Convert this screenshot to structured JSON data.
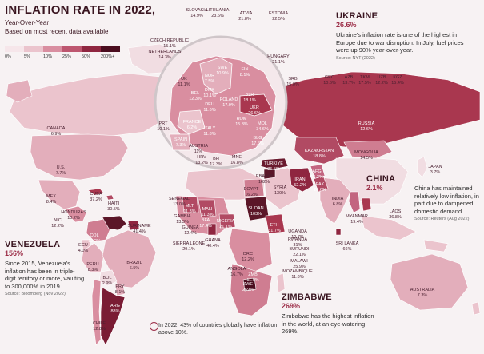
{
  "title": "INFLATION RATE IN 2022,",
  "subtitle_line1": "Year-Over-Year",
  "subtitle_line2": "Based on most recent data available",
  "legend": [
    {
      "label": "0%",
      "color": "#f6e6ea"
    },
    {
      "label": "5%",
      "color": "#ebc4cd"
    },
    {
      "label": "10%",
      "color": "#d98ea0"
    },
    {
      "label": "25%",
      "color": "#bd566f"
    },
    {
      "label": "50%",
      "color": "#8f2640"
    },
    {
      "label": "200%+",
      "color": "#4b0d1f"
    }
  ],
  "callouts": {
    "ukraine": {
      "heading": "UKRAINE",
      "value": "26.6%",
      "text": "Ukraine's inflation rate is one of the highest in Europe due to war disruption. In July, fuel prices were up 90% year-over-year.",
      "source": "Source: NYT (2022)"
    },
    "china": {
      "heading": "CHINA",
      "value": "2.1%",
      "text": "China has maintained relatively low inflation, in part due to dampened domestic demand.",
      "source": "Source: Reuters (Aug 2022)"
    },
    "venezuela": {
      "heading": "VENEZUELA",
      "value": "156%",
      "text": "Since 2015, Venezuela's inflation has been in triple-digit territory or more, vaulting to 300,000% in 2019.",
      "source": "Source: Bloomberg (Nov 2022)"
    },
    "zimbabwe": {
      "heading": "ZIMBABWE",
      "value": "269%",
      "text": "Zimbabwe has the highest inflation in the world, at an eye-watering 269%."
    }
  },
  "footnote": "In 2022, 43% of countries globally have inflation above 10%.",
  "footnote_icon": "i",
  "colors": {
    "title": "#3a1520",
    "accent": "#9c2d47",
    "land_default": "#ebc4cd",
    "ocean": "#f7f2f3"
  },
  "countries": [
    {
      "name": "CANADA",
      "value": "6.9%"
    },
    {
      "name": "U.S.",
      "value": "7.7%"
    },
    {
      "name": "MEX",
      "value": "8.4%"
    },
    {
      "name": "CUBA",
      "value": "37.2%"
    },
    {
      "name": "HAITI",
      "value": "30.5%"
    },
    {
      "name": "HONDURAS",
      "value": "10.2%"
    },
    {
      "name": "NIC",
      "value": "12.2%"
    },
    {
      "name": "COL",
      "value": "12.2%"
    },
    {
      "name": "ECU",
      "value": "4.0%"
    },
    {
      "name": "PERU",
      "value": "8.3%"
    },
    {
      "name": "BOL",
      "value": "2.9%"
    },
    {
      "name": "BRAZIL",
      "value": "6.5%"
    },
    {
      "name": "PRY",
      "value": "8.1%"
    },
    {
      "name": "ARG",
      "value": "88%"
    },
    {
      "name": "CHILE",
      "value": "12.8%"
    },
    {
      "name": "SURINAME",
      "value": "41.4%"
    },
    {
      "name": "SENEGAL",
      "value": "13.0%"
    },
    {
      "name": "GAMBIA",
      "value": "13.3%"
    },
    {
      "name": "GUINEA",
      "value": "12.4%"
    },
    {
      "name": "SIERRA LEONE",
      "value": "29.1%"
    },
    {
      "name": "MLT",
      "value": "11.3%"
    },
    {
      "name": "MALI",
      "value": "11.3%"
    },
    {
      "name": "BFA",
      "value": "17.4%"
    },
    {
      "name": "NIGERIA",
      "value": "21.1%"
    },
    {
      "name": "GHANA",
      "value": "40.4%"
    },
    {
      "name": "EGYPT",
      "value": "16.2%"
    },
    {
      "name": "SUDAN",
      "value": "103%"
    },
    {
      "name": "ETH",
      "value": "31.7%"
    },
    {
      "name": "UGANDA",
      "value": "10.7%"
    },
    {
      "name": "RWANDA",
      "value": "31%"
    },
    {
      "name": "BURUNDI",
      "value": "22.1%"
    },
    {
      "name": "DRC",
      "value": "12.2%"
    },
    {
      "name": "MALAWI",
      "value": "25.9%"
    },
    {
      "name": "MOZAMBIQUE",
      "value": "11.8%"
    },
    {
      "name": "ANGOLA",
      "value": "16.7%"
    },
    {
      "name": "ZMB",
      "value": "11.6%"
    },
    {
      "name": "ZWE",
      "value": "269%"
    },
    {
      "name": "TÜRKIYE",
      "value": "85.5%"
    },
    {
      "name": "LEBANON",
      "value": "162%"
    },
    {
      "name": "SYRIA",
      "value": "139%"
    },
    {
      "name": "IRAN",
      "value": "52.2%"
    },
    {
      "name": "AFG",
      "value": "18.3%"
    },
    {
      "name": "PAK",
      "value": "26.6%"
    },
    {
      "name": "INDIA",
      "value": "6.8%"
    },
    {
      "name": "SRI LANKA",
      "value": "66%"
    },
    {
      "name": "MYANMAR",
      "value": "19.4%"
    },
    {
      "name": "LAOS",
      "value": "36.8%"
    },
    {
      "name": "KAZAKHSTAN",
      "value": "18.8%"
    },
    {
      "name": "MONGOLIA",
      "value": "14.5%"
    },
    {
      "name": "RUSSIA",
      "value": "12.6%"
    },
    {
      "name": "JAPAN",
      "value": "3.7%"
    },
    {
      "name": "AUSTRALIA",
      "value": "7.3%"
    },
    {
      "name": "GEO",
      "value": "10.6%"
    },
    {
      "name": "AZB",
      "value": "13.7%"
    },
    {
      "name": "TKM",
      "value": "17.5%"
    },
    {
      "name": "UZB",
      "value": "12.2%"
    },
    {
      "name": "KGZ",
      "value": "15.4%"
    },
    {
      "name": "SRB",
      "value": "15.0%"
    },
    {
      "name": "HUNGARY",
      "value": "21.1%"
    },
    {
      "name": "ESTONIA",
      "value": "22.5%"
    },
    {
      "name": "LATVIA",
      "value": "21.8%"
    },
    {
      "name": "LITHUANIA",
      "value": "23.6%"
    },
    {
      "name": "SLOVAKIA",
      "value": "14.9%"
    },
    {
      "name": "CZECH REPUBLIC",
      "value": "15.1%"
    },
    {
      "name": "NETHERLANDS",
      "value": "14.3%"
    },
    {
      "name": "NOR",
      "value": "7.5%"
    },
    {
      "name": "SWE",
      "value": "10.9%"
    },
    {
      "name": "FIN",
      "value": "8.1%"
    },
    {
      "name": "DMK",
      "value": "10.1%"
    },
    {
      "name": "BEL",
      "value": "12.3%"
    },
    {
      "name": "DEU",
      "value": "11.6%"
    },
    {
      "name": "POLAND",
      "value": "17.9%"
    },
    {
      "name": "BLR",
      "value": "18.1%"
    },
    {
      "name": "UKR",
      "value": "26.6%"
    },
    {
      "name": "FRANCE",
      "value": "6.2%"
    },
    {
      "name": "ITALY",
      "value": "11.8%"
    },
    {
      "name": "ROM",
      "value": "15.3%"
    },
    {
      "name": "MOL",
      "value": "34.6%"
    },
    {
      "name": "BLG",
      "value": "17.6%"
    },
    {
      "name": "AUSTRIA",
      "value": "11%"
    },
    {
      "name": "HRV",
      "value": "13.2%"
    },
    {
      "name": "BH",
      "value": "17.3%"
    },
    {
      "name": "MNE",
      "value": "16.8%"
    },
    {
      "name": "PRT",
      "value": "10.1%"
    },
    {
      "name": "SPAIN",
      "value": "7.3%"
    },
    {
      "name": "UK",
      "value": "11.1%"
    }
  ]
}
